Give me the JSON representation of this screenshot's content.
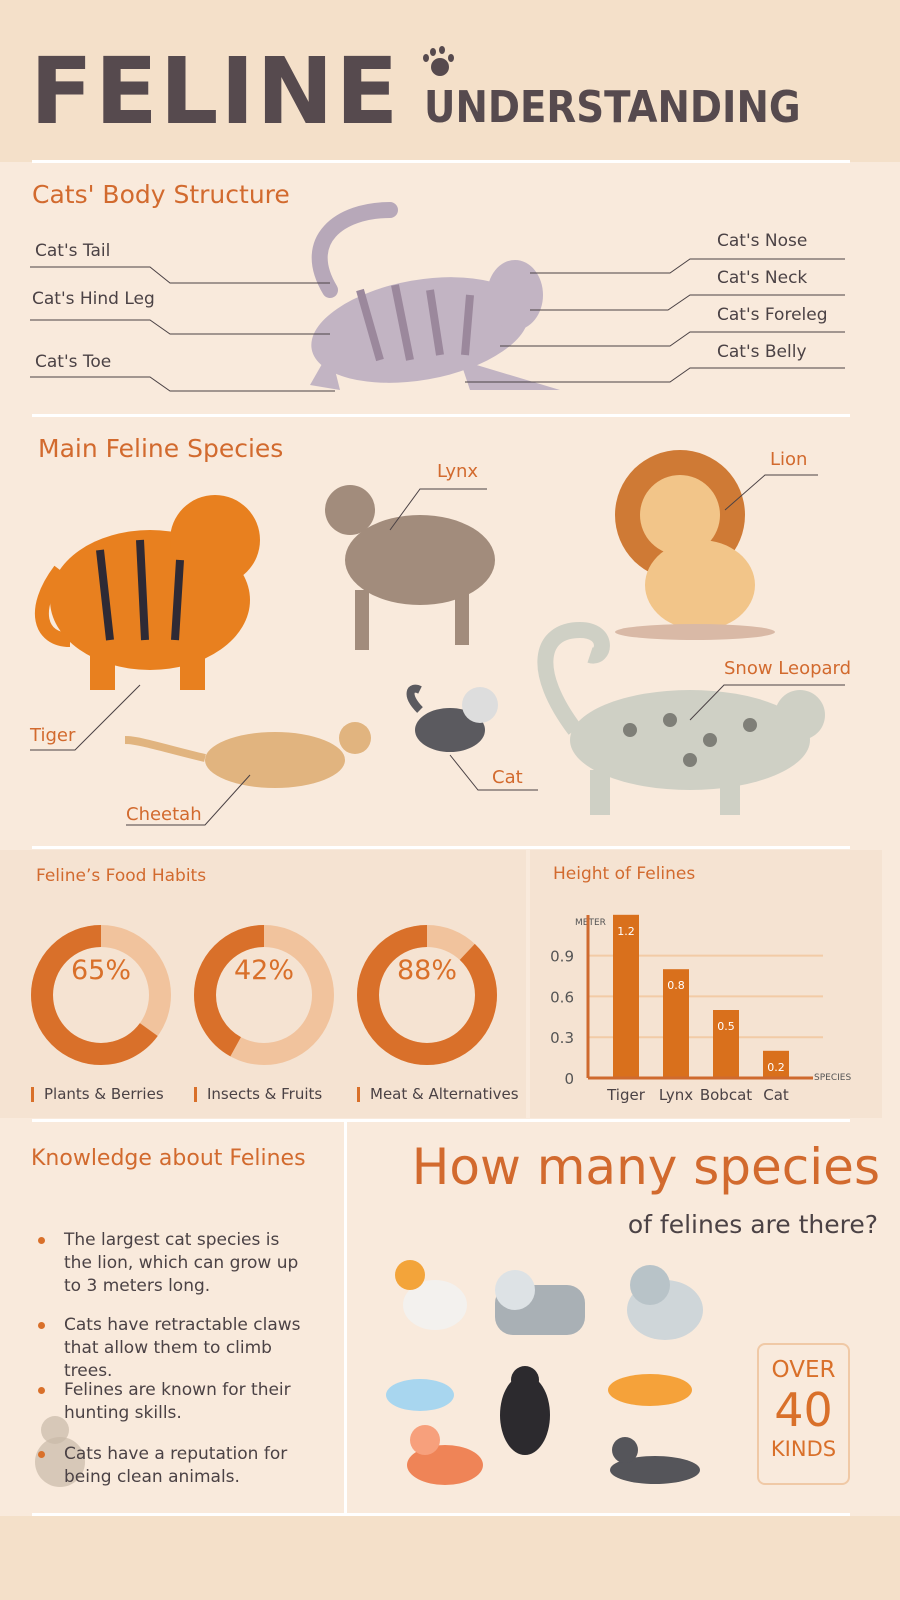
{
  "header": {
    "title": "FELINE",
    "subtitle": "UNDERSTANDING",
    "icon": "paw-icon"
  },
  "body_structure": {
    "title": "Cats' Body Structure",
    "left_labels": [
      "Cat's Tail",
      "Cat's Hind Leg",
      "Cat's Toe"
    ],
    "right_labels": [
      "Cat's Nose",
      "Cat's Neck",
      "Cat's Foreleg",
      "Cat's Belly"
    ]
  },
  "species": {
    "title": "Main Feline Species",
    "labels": {
      "lynx": "Lynx",
      "lion": "Lion",
      "snow_leopard": "Snow Leopard",
      "tiger": "Tiger",
      "cat": "Cat",
      "cheetah": "Cheetah"
    }
  },
  "food": {
    "title": "Feline’s Food Habits",
    "items": [
      {
        "label": "Plants & Berries",
        "percent": 65,
        "text": "65%"
      },
      {
        "label": "Insects & Fruits",
        "percent": 42,
        "text": "42%"
      },
      {
        "label": "Meat & Alternatives",
        "percent": 88,
        "text": "88%"
      }
    ]
  },
  "chart_data": {
    "type": "bar",
    "title": "Height of Felines",
    "ylabel": "METER",
    "xlabel": "SPECIES",
    "categories": [
      "Tiger",
      "Lynx",
      "Bobcat",
      "Cat"
    ],
    "values": [
      1.2,
      0.8,
      0.5,
      0.2
    ],
    "value_labels": [
      "1.2",
      "0.8",
      "0.5",
      "0.2"
    ],
    "yticks": [
      "0",
      "0.3",
      "0.6",
      "0.9"
    ],
    "grid": true,
    "bar_color": "#d9701c"
  },
  "knowledge": {
    "title": "Knowledge about Felines",
    "bullets": [
      "The largest cat species is the lion, which can grow up to 3 meters long.",
      "Cats have retractable claws that allow them to climb trees.",
      "Felines are known for their hunting skills.",
      "Cats have a reputation for being clean animals."
    ]
  },
  "count": {
    "heading": "How many species",
    "subheading": "of felines are there?",
    "over": "OVER",
    "number": "40",
    "kinds": "KINDS"
  },
  "colors": {
    "accent": "#d9702a",
    "dark": "#564a4e",
    "bg": "#f9eadc",
    "header_bg": "#f4e0c9"
  }
}
